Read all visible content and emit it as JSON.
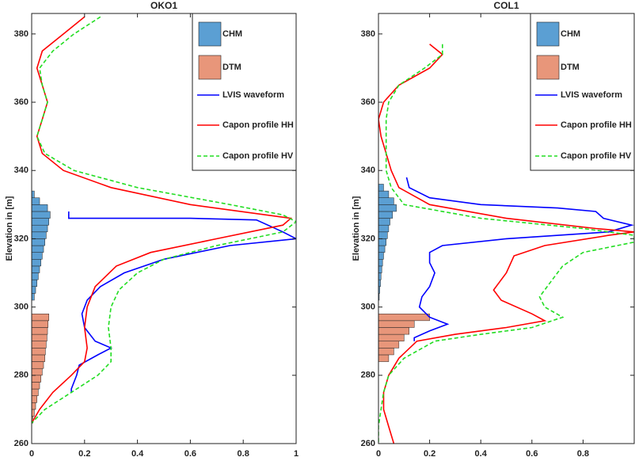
{
  "chart_data": [
    {
      "type": "profile",
      "title": "OKO1",
      "ylabel": "Elevation in [m]",
      "xlim": [
        0,
        1
      ],
      "ylim": [
        260,
        386
      ],
      "xticks": [
        0,
        0.2,
        0.4,
        0.6,
        0.8,
        1
      ],
      "yticks": [
        260,
        280,
        300,
        320,
        340,
        360,
        380
      ],
      "legend": "northeast",
      "series": [
        {
          "name": "CHM",
          "kind": "barh",
          "color": "#5b9fd3",
          "bins": [
            302,
            304,
            306,
            308,
            310,
            312,
            314,
            316,
            318,
            320,
            322,
            324,
            326,
            328,
            330,
            332,
            334
          ],
          "values": [
            0.01,
            0.015,
            0.02,
            0.025,
            0.03,
            0.035,
            0.04,
            0.045,
            0.05,
            0.055,
            0.06,
            0.065,
            0.07,
            0.06,
            0.03,
            0.01
          ]
        },
        {
          "name": "DTM",
          "kind": "barh",
          "color": "#e8967a",
          "bins": [
            266,
            268,
            270,
            272,
            274,
            276,
            278,
            280,
            282,
            284,
            286,
            288,
            290,
            292,
            294,
            296,
            298
          ],
          "values": [
            0.005,
            0.01,
            0.015,
            0.02,
            0.025,
            0.03,
            0.035,
            0.04,
            0.045,
            0.05,
            0.052,
            0.055,
            0.058,
            0.06,
            0.062,
            0.065
          ]
        },
        {
          "name": "LVIS waveform",
          "kind": "line",
          "color": "#0000ff",
          "linestyle": "solid",
          "x": [
            0.14,
            0.14,
            0.14,
            0.6,
            0.85,
            0.95,
            1.0,
            0.75,
            0.5,
            0.35,
            0.26,
            0.21,
            0.19,
            0.2,
            0.24,
            0.3,
            0.25,
            0.18,
            0.17,
            0.15,
            0.15
          ],
          "y": [
            328,
            327,
            326,
            326,
            325.5,
            322,
            320,
            318,
            314,
            310,
            306,
            302,
            298,
            294,
            290,
            288,
            286,
            283,
            280,
            276,
            275
          ]
        },
        {
          "name": "Capon profile HH",
          "kind": "line",
          "color": "#ff0000",
          "linestyle": "solid",
          "x": [
            0.2,
            0.12,
            0.04,
            0.02,
            0.04,
            0.06,
            0.04,
            0.02,
            0.04,
            0.12,
            0.3,
            0.6,
            0.98,
            0.95,
            0.7,
            0.45,
            0.32,
            0.24,
            0.21,
            0.2,
            0.21,
            0.2,
            0.15,
            0.08,
            0.03,
            0
          ],
          "y": [
            385,
            380,
            375,
            370,
            365,
            360,
            355,
            350,
            345,
            340,
            335,
            330,
            326,
            324,
            320,
            316,
            312,
            306,
            300,
            294,
            288,
            284,
            280,
            275,
            270,
            266
          ]
        },
        {
          "name": "Capon profile HV",
          "kind": "line",
          "color": "#22dd22",
          "linestyle": "dashed",
          "x": [
            0.26,
            0.16,
            0.08,
            0.03,
            0.04,
            0.06,
            0.04,
            0.02,
            0.05,
            0.16,
            0.4,
            0.75,
            0.95,
            1.0,
            0.95,
            0.7,
            0.5,
            0.4,
            0.33,
            0.3,
            0.29,
            0.3,
            0.3,
            0.25,
            0.15,
            0.05,
            0
          ],
          "y": [
            385,
            380,
            375,
            370,
            365,
            360,
            355,
            350,
            345,
            340,
            335,
            330,
            327,
            325,
            322,
            318,
            314,
            310,
            305,
            300,
            294,
            288,
            284,
            280,
            275,
            270,
            266
          ]
        }
      ]
    },
    {
      "type": "profile",
      "title": "COL1",
      "ylabel": "Elevation in [m]",
      "xlim": [
        0,
        1
      ],
      "ylim": [
        260,
        386
      ],
      "xticks": [
        0,
        0.2,
        0.4,
        0.6,
        0.8
      ],
      "yticks": [
        260,
        280,
        300,
        320,
        340,
        360,
        380
      ],
      "legend": "northeast",
      "series": [
        {
          "name": "CHM",
          "kind": "barh",
          "color": "#5b9fd3",
          "bins": [
            302,
            304,
            306,
            308,
            310,
            312,
            314,
            316,
            318,
            320,
            322,
            324,
            326,
            328,
            330,
            332,
            334,
            336
          ],
          "values": [
            0.003,
            0.005,
            0.008,
            0.01,
            0.013,
            0.016,
            0.02,
            0.025,
            0.03,
            0.035,
            0.04,
            0.045,
            0.055,
            0.07,
            0.06,
            0.04,
            0.02
          ]
        },
        {
          "name": "DTM",
          "kind": "barh",
          "color": "#e8967a",
          "bins": [
            284,
            286,
            288,
            290,
            292,
            294,
            296,
            298
          ],
          "values": [
            0.04,
            0.06,
            0.08,
            0.1,
            0.12,
            0.14,
            0.2
          ]
        },
        {
          "name": "LVIS waveform",
          "kind": "line",
          "color": "#0000ff",
          "linestyle": "solid",
          "x": [
            0.11,
            0.12,
            0.2,
            0.4,
            0.7,
            0.85,
            0.88,
            0.99,
            0.9,
            0.5,
            0.25,
            0.2,
            0.2,
            0.22,
            0.2,
            0.17,
            0.16,
            0.2,
            0.27,
            0.2,
            0.14,
            0.14
          ],
          "y": [
            338,
            335,
            332,
            330,
            329,
            328,
            326,
            324,
            322,
            320,
            318,
            316,
            313,
            310,
            306,
            303,
            300,
            297,
            295,
            293,
            291,
            290
          ]
        },
        {
          "name": "Capon profile HH",
          "kind": "line",
          "color": "#ff0000",
          "linestyle": "solid",
          "x": [
            0.2,
            0.25,
            0.2,
            0.08,
            0.02,
            0,
            0.01,
            0.03,
            0.05,
            0.08,
            0.2,
            0.5,
            0.85,
            1.0,
            0.9,
            0.65,
            0.53,
            0.5,
            0.45,
            0.48,
            0.6,
            0.65,
            0.5,
            0.3,
            0.15,
            0.08,
            0.04,
            0.02,
            0.02,
            0.04,
            0.06
          ],
          "y": [
            377,
            374,
            370,
            365,
            360,
            355,
            350,
            345,
            340,
            335,
            330,
            326,
            323,
            322,
            321,
            318,
            315,
            310,
            305,
            302,
            298,
            296,
            294,
            292,
            290,
            285,
            280,
            275,
            270,
            265,
            260
          ]
        },
        {
          "name": "Capon profile HV",
          "kind": "line",
          "color": "#22dd22",
          "linestyle": "dashed",
          "x": [
            0.25,
            0.25,
            0.18,
            0.08,
            0.04,
            0.03,
            0.03,
            0.03,
            0.03,
            0.05,
            0.1,
            0.4,
            0.8,
            1.0,
            1.0,
            0.8,
            0.72,
            0.68,
            0.63,
            0.65,
            0.72,
            0.6,
            0.4,
            0.22,
            0.1,
            0.04,
            0.02,
            0.01,
            0,
            0
          ],
          "y": [
            377,
            374,
            370,
            365,
            360,
            355,
            350,
            345,
            340,
            335,
            330,
            326,
            323,
            321,
            319,
            316,
            312,
            308,
            303,
            300,
            297,
            294,
            292,
            290,
            285,
            280,
            275,
            270,
            265,
            260
          ]
        }
      ]
    }
  ]
}
